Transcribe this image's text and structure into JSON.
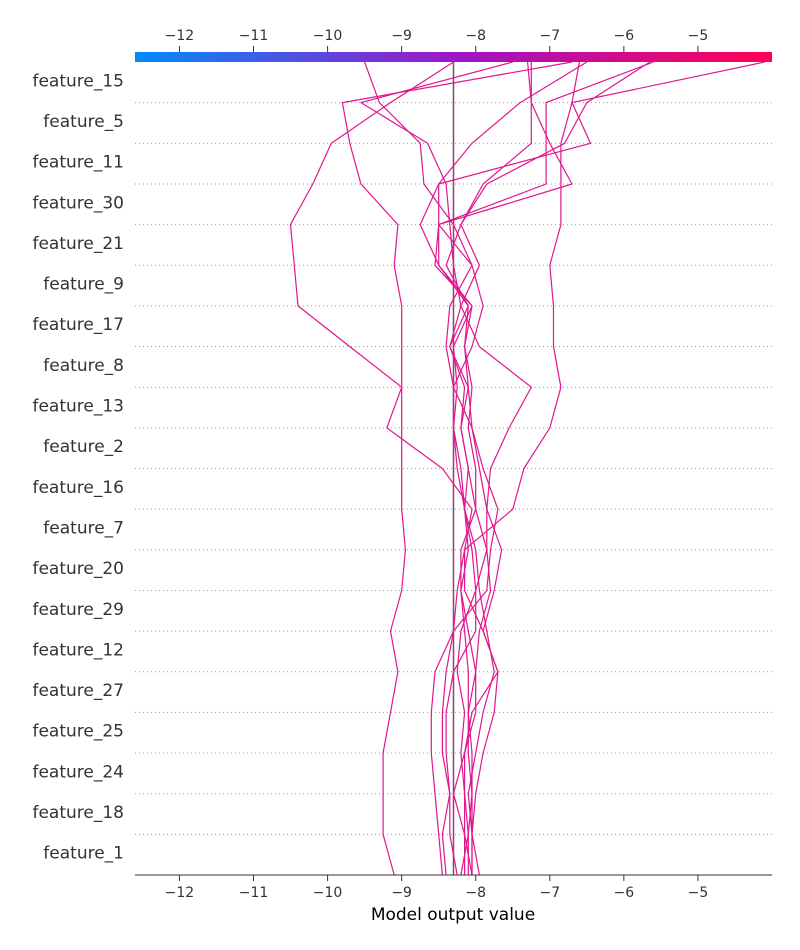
{
  "chart_data": {
    "type": "line",
    "chart_kind": "decision-plot",
    "xlabel": "Model output value",
    "xlim": [
      -12.6,
      -4.0
    ],
    "x_ticks": [
      "−12",
      "−11",
      "−10",
      "−9",
      "−8",
      "−7",
      "−6",
      "−5"
    ],
    "x_tick_values": [
      -12,
      -11,
      -10,
      -9,
      -8,
      -7,
      -6,
      -5
    ],
    "base_value": -8.3,
    "colorbar": {
      "position": "top",
      "from_color": "#008bfb",
      "mid_color": "#9e16c8",
      "to_color": "#ff0052"
    },
    "line_color": "#e0168e",
    "base_line_color": "#808080",
    "features": [
      "feature_15",
      "feature_5",
      "feature_11",
      "feature_30",
      "feature_21",
      "feature_9",
      "feature_17",
      "feature_8",
      "feature_13",
      "feature_2",
      "feature_16",
      "feature_7",
      "feature_20",
      "feature_29",
      "feature_12",
      "feature_27",
      "feature_25",
      "feature_24",
      "feature_18",
      "feature_1"
    ],
    "series": [
      {
        "values": [
          -9.1,
          -9.25,
          -9.25,
          -9.25,
          -9.15,
          -9.05,
          -9.15,
          -9.0,
          -8.95,
          -9.0,
          -9.0,
          -9.0,
          -9.0,
          -9.0,
          -9.0,
          -9.1,
          -9.05,
          -9.55,
          -9.7,
          -9.8,
          -6.7
        ]
      },
      {
        "values": [
          -8.3,
          -8.3,
          -8.3,
          -8.3,
          -8.3,
          -8.3,
          -8.3,
          -8.3,
          -8.3,
          -8.3,
          -8.3,
          -8.3,
          -8.3,
          -8.3,
          -8.3,
          -8.3,
          -8.3,
          -8.3,
          -8.3,
          -8.3,
          -8.3
        ]
      },
      {
        "values": [
          -7.95,
          -8.05,
          -8.0,
          -7.9,
          -7.75,
          -7.7,
          -7.9,
          -7.75,
          -7.65,
          -7.85,
          -7.95,
          -8.05,
          -8.1,
          -8.35,
          -8.1,
          -8.4,
          -8.2,
          -7.85,
          -6.8,
          -6.5,
          -5.65
        ]
      },
      {
        "values": [
          -8.4,
          -8.45,
          -8.35,
          -8.4,
          -8.4,
          -8.3,
          -8.0,
          -8.0,
          -7.85,
          -8.0,
          -8.1,
          -8.2,
          -8.1,
          -8.15,
          -8.05,
          -8.5,
          -8.75,
          -8.5,
          -6.45,
          -6.7,
          -6.6
        ]
      },
      {
        "values": [
          -8.15,
          -8.15,
          -8.3,
          -8.15,
          -8.0,
          -8.0,
          -8.1,
          -8.2,
          -8.1,
          -8.15,
          -8.2,
          -8.3,
          -8.25,
          -8.3,
          -8.05,
          -8.55,
          -8.5,
          -8.5,
          -8.05,
          -7.4,
          -6.5
        ]
      },
      {
        "values": [
          -8.05,
          -8.05,
          -8.1,
          -8.0,
          -7.9,
          -7.75,
          -7.85,
          -7.95,
          -8.0,
          -8.15,
          -8.1,
          -8.2,
          -8.15,
          -8.35,
          -8.2,
          -7.95,
          -8.2,
          -7.9,
          -7.25,
          -7.25,
          -7.25
        ]
      },
      {
        "values": [
          -8.45,
          -8.5,
          -8.55,
          -8.6,
          -8.6,
          -8.55,
          -8.3,
          -7.85,
          -7.8,
          -7.7,
          -7.9,
          -8.05,
          -8.3,
          -8.05,
          -7.9,
          -8.05,
          -8.3,
          -8.7,
          -8.75,
          -9.3,
          -9.5
        ]
      },
      {
        "values": [
          -8.05,
          -8.05,
          -8.05,
          -8.05,
          -8.1,
          -8.0,
          -7.95,
          -7.8,
          -7.85,
          -7.85,
          -7.8,
          -7.55,
          -7.25,
          -7.95,
          -8.2,
          -8.3,
          -8.35,
          -8.4,
          -8.65,
          -9.55,
          -7.5
        ]
      },
      {
        "values": [
          -8.25,
          -8.35,
          -8.35,
          -8.45,
          -8.45,
          -8.4,
          -8.3,
          -8.25,
          -8.15,
          -7.5,
          -7.35,
          -7.0,
          -6.85,
          -6.95,
          -6.95,
          -7.0,
          -6.85,
          -6.85,
          -6.85,
          -6.7,
          -4.1
        ]
      },
      {
        "values": [
          -8.2,
          -8.1,
          -8.05,
          -8.1,
          -8.1,
          -8.1,
          -8.15,
          -8.2,
          -8.2,
          -8.0,
          -8.0,
          -8.1,
          -8.05,
          -8.15,
          -8.1,
          -8.5,
          -8.5,
          -6.7,
          -7.0,
          -7.25,
          -7.3
        ]
      },
      {
        "values": [
          -8.1,
          -8.1,
          -8.15,
          -8.2,
          -8.15,
          -8.25,
          -8.2,
          -8.0,
          -8.05,
          -8.15,
          -8.25,
          -8.3,
          -8.3,
          -8.4,
          -8.35,
          -8.05,
          -8.5,
          -7.05,
          -7.05,
          -7.05,
          -5.6
        ]
      },
      {
        "values": [
          -8.05,
          -8.15,
          -8.15,
          -8.15,
          -8.05,
          -7.7,
          -7.9,
          -8.15,
          -8.15,
          -8.05,
          -8.45,
          -9.2,
          -9.0,
          -9.7,
          -10.4,
          -10.45,
          -10.5,
          -10.2,
          -9.95,
          -9.15,
          -8.3
        ]
      }
    ]
  }
}
